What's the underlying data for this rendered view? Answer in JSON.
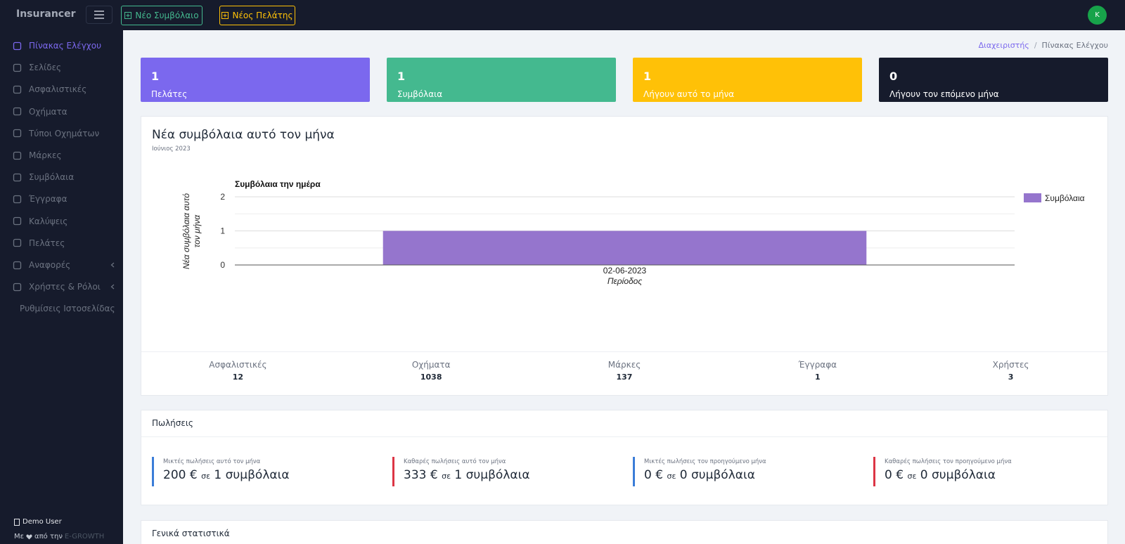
{
  "header": {
    "brand": "Insurancer",
    "buttons": [
      "Νέο Συμβόλαιο",
      "Νέος Πελάτης"
    ],
    "avatar": "K"
  },
  "sidebar": {
    "items": [
      {
        "label": "Πίνακας Ελέγχου",
        "active": true
      },
      {
        "label": "Σελίδες"
      },
      {
        "label": "Ασφαλιστικές"
      },
      {
        "label": "Οχήματα"
      },
      {
        "label": "Τύποι Οχημάτων"
      },
      {
        "label": "Μάρκες"
      },
      {
        "label": "Συμβόλαια"
      },
      {
        "label": "Έγγραφα"
      },
      {
        "label": "Καλύψεις"
      },
      {
        "label": "Πελάτες"
      },
      {
        "label": "Αναφορές",
        "has_submenu": true
      },
      {
        "label": "Χρήστες & Ρόλοι",
        "has_submenu": true
      },
      {
        "label": "Ρυθμίσεις Ιστοσελίδας"
      }
    ],
    "user": "Demo User",
    "credit": {
      "prefix": "Με",
      "middle": "από την",
      "company": "E-GROWTH"
    }
  },
  "breadcrumb": [
    "Διαχειριστής",
    "Πίνακας Ελέγχου"
  ],
  "stat_cards": [
    {
      "value": 1,
      "label": "Πελάτες",
      "color": "#7b68ee"
    },
    {
      "value": 1,
      "label": "Συμβόλαια",
      "color": "#44b98f"
    },
    {
      "value": 1,
      "label": "Λήγουν αυτό το μήνα",
      "color": "#ffc107"
    },
    {
      "value": 0,
      "label": "Λήγουν τον επόμενο μήνα",
      "color": "#161b2c"
    }
  ],
  "chart_card": {
    "title": "Νέα συμβόλαια αυτό τον μήνα",
    "subtitle": "Ιούνιος 2023"
  },
  "chart_data": {
    "type": "bar",
    "title": "Συμβόλαια την ημέρα",
    "categories": [
      "02-06-2023"
    ],
    "series": [
      {
        "name": "Συμβόλαια",
        "color": "#9575cd",
        "values": [
          1
        ]
      }
    ],
    "xlabel": "Περίοδος",
    "ylabel": "Νέα συμβόλαια αυτό τον μήνα",
    "ylim": [
      0,
      2
    ],
    "yticks": [
      0,
      1,
      2
    ],
    "grid": true,
    "legend": "right"
  },
  "summary": [
    {
      "label": "Ασφαλιστικές",
      "value": 12
    },
    {
      "label": "Οχήματα",
      "value": 1038
    },
    {
      "label": "Μάρκες",
      "value": 137
    },
    {
      "label": "Έγγραφα",
      "value": 1
    },
    {
      "label": "Χρήστες",
      "value": 3
    }
  ],
  "sales": {
    "title": "Πωλήσεις",
    "items": [
      {
        "label": "Μικτές πωλήσεις αυτό τον μήνα",
        "amount": 200,
        "currency": "€",
        "connector": "σε",
        "count": 1,
        "unit": "συμβόλαια",
        "color": "#3b7dd8"
      },
      {
        "label": "Καθαρές πωλήσεις αυτό τον μήνα",
        "amount": 333,
        "currency": "€",
        "connector": "σε",
        "count": 1,
        "unit": "συμβόλαια",
        "color": "#dc3545"
      },
      {
        "label": "Μικτές πωλήσεις τον προηγούμενο μήνα",
        "amount": 0,
        "currency": "€",
        "connector": "σε",
        "count": 0,
        "unit": "συμβόλαια",
        "color": "#3b7dd8"
      },
      {
        "label": "Καθαρές πωλήσεις τον προηγούμενο μήνα",
        "amount": 0,
        "currency": "€",
        "connector": "σε",
        "count": 0,
        "unit": "συμβόλαια",
        "color": "#dc3545"
      }
    ]
  },
  "general_stats": {
    "title": "Γενικά στατιστικά"
  }
}
